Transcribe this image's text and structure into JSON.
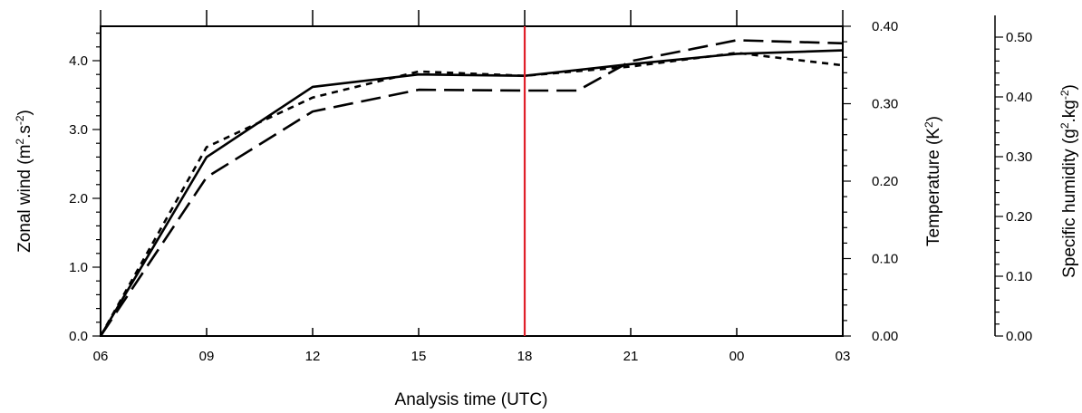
{
  "chart_data": {
    "type": "line",
    "title": "",
    "x": [
      "06",
      "09",
      "12",
      "15",
      "18",
      "21",
      "00",
      "03"
    ],
    "xlabel": "Analysis time (UTC)",
    "axes": {
      "left": {
        "label_main": "Zonal wind (m",
        "label_sup1": "2",
        "label_mid": ".s",
        "label_sup2": "-2",
        "label_end": ")",
        "range": [
          0,
          4.5
        ],
        "ticks": [
          "0.0",
          "1.0",
          "2.0",
          "3.0",
          "4.0"
        ],
        "tick_values": [
          0,
          1,
          2,
          3,
          4
        ]
      },
      "right": {
        "label_main": "Temperature (K",
        "label_sup1": "2",
        "label_end": ")",
        "range": [
          0,
          0.4
        ],
        "ticks": [
          "0.00",
          "0.10",
          "0.20",
          "0.30",
          "0.40"
        ],
        "tick_values": [
          0,
          0.1,
          0.2,
          0.3,
          0.4
        ]
      },
      "far_right": {
        "label_main": "Specific humidity (g",
        "label_sup1": "2",
        "label_mid": ".kg",
        "label_sup2": "-2",
        "label_end": ")",
        "range": [
          0,
          0.5
        ],
        "ticks": [
          "0.00",
          "0.10",
          "0.20",
          "0.30",
          "0.40",
          "0.50"
        ],
        "tick_values": [
          0,
          0.1,
          0.2,
          0.3,
          0.4,
          0.5
        ]
      }
    },
    "vline": {
      "x_index": 4,
      "color": "#e0202a"
    },
    "series": [
      {
        "axis": "left",
        "style": "solid",
        "color": "#000000",
        "points": [
          [
            0,
            0.0
          ],
          [
            1,
            2.6
          ],
          [
            2,
            3.62
          ],
          [
            3,
            3.8
          ],
          [
            4,
            3.78
          ],
          [
            5,
            3.95
          ],
          [
            6,
            4.1
          ],
          [
            7,
            4.15
          ]
        ]
      },
      {
        "axis": "right",
        "style": "long-dash",
        "color": "#000000",
        "points": [
          [
            0,
            0.0
          ],
          [
            1,
            0.205
          ],
          [
            2,
            0.29
          ],
          [
            3,
            0.318
          ],
          [
            4,
            0.317
          ],
          [
            4.5,
            0.317
          ],
          [
            5,
            0.355
          ],
          [
            6,
            0.382
          ],
          [
            7,
            0.378
          ]
        ]
      },
      {
        "axis": "far_right",
        "style": "short-dash",
        "color": "#000000",
        "points": [
          [
            0,
            0.0
          ],
          [
            1,
            0.305
          ],
          [
            2,
            0.385
          ],
          [
            3,
            0.427
          ],
          [
            4,
            0.42
          ],
          [
            5,
            0.435
          ],
          [
            6,
            0.457
          ],
          [
            7,
            0.437
          ]
        ]
      }
    ],
    "grid": false,
    "legend": "none"
  }
}
